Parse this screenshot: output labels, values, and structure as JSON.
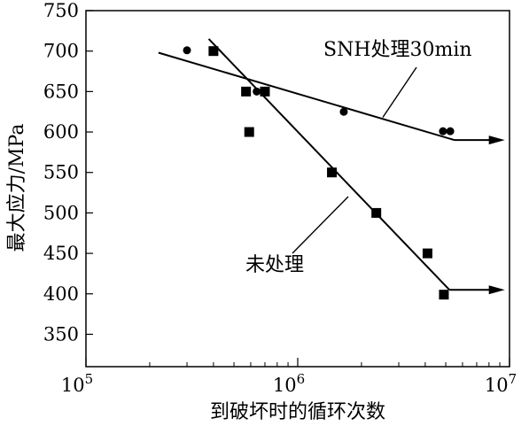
{
  "chart_data": {
    "type": "scatter",
    "title": "",
    "xlabel": "到破坏时的循环次数",
    "ylabel": "最大应力/MPa",
    "x_scale": "log",
    "xlim": [
      100000,
      10000000
    ],
    "ylim": [
      310,
      750
    ],
    "y_ticks": [
      350,
      400,
      450,
      500,
      550,
      600,
      650,
      700,
      750
    ],
    "x_ticks": [
      {
        "value": 100000,
        "base": "10",
        "exp": "5"
      },
      {
        "value": 1000000,
        "base": "10",
        "exp": "6"
      },
      {
        "value": 10000000,
        "base": "10",
        "exp": "7"
      }
    ],
    "grid": false,
    "series": [
      {
        "name": "SNH处理30min",
        "marker": "circle",
        "points": [
          [
            300000,
            701
          ],
          [
            640000,
            650
          ],
          [
            1650000,
            625
          ],
          [
            4850000,
            601
          ],
          [
            5250000,
            601
          ]
        ],
        "fit_line": [
          [
            220000,
            698
          ],
          [
            5500000,
            590
          ]
        ],
        "dash_segment": [
          [
            720000,
            648
          ],
          [
            1000000,
            640
          ]
        ],
        "runout": [
          [
            5500000,
            590
          ],
          [
            9500000,
            590
          ]
        ]
      },
      {
        "name": "未处理",
        "marker": "square",
        "points": [
          [
            400000,
            700
          ],
          [
            570000,
            650
          ],
          [
            590000,
            600
          ],
          [
            700000,
            650
          ],
          [
            1450000,
            550
          ],
          [
            2350000,
            500
          ],
          [
            4100000,
            450
          ],
          [
            4900000,
            399
          ]
        ],
        "fit_line": [
          [
            380000,
            715
          ],
          [
            5200000,
            405
          ]
        ],
        "runout": [
          [
            5200000,
            405
          ],
          [
            9500000,
            405
          ]
        ]
      }
    ],
    "annotations": [
      {
        "text": "SNH处理30min",
        "points_to": "SNH处理30min"
      },
      {
        "text": "未处理",
        "points_to": "未处理"
      }
    ]
  }
}
